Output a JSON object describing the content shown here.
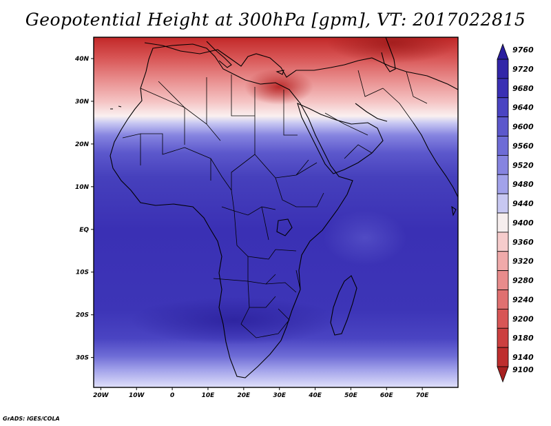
{
  "title": "Geopotential Height at 300hPa [gpm], VT: 2017022815",
  "credit": "GrADS: IGES/COLA",
  "map": {
    "lon_range": [
      -22,
      80
    ],
    "lat_range": [
      -37,
      45
    ],
    "x_ticks": [
      {
        "lon": -20,
        "label": "20W"
      },
      {
        "lon": -10,
        "label": "10W"
      },
      {
        "lon": 0,
        "label": "0"
      },
      {
        "lon": 10,
        "label": "10E"
      },
      {
        "lon": 20,
        "label": "20E"
      },
      {
        "lon": 30,
        "label": "30E"
      },
      {
        "lon": 40,
        "label": "40E"
      },
      {
        "lon": 50,
        "label": "50E"
      },
      {
        "lon": 60,
        "label": "60E"
      },
      {
        "lon": 70,
        "label": "70E"
      }
    ],
    "y_ticks": [
      {
        "lat": 40,
        "label": "40N"
      },
      {
        "lat": 30,
        "label": "30N"
      },
      {
        "lat": 20,
        "label": "20N"
      },
      {
        "lat": 10,
        "label": "10N"
      },
      {
        "lat": 0,
        "label": "EQ"
      },
      {
        "lat": -10,
        "label": "10S"
      },
      {
        "lat": -20,
        "label": "20S"
      },
      {
        "lat": -30,
        "label": "30S"
      }
    ]
  },
  "colorbar": {
    "levels": [
      {
        "value": "9760",
        "color": "#2a1e9e"
      },
      {
        "value": "9720",
        "color": "#3226a8"
      },
      {
        "value": "9680",
        "color": "#3a30b4"
      },
      {
        "value": "9640",
        "color": "#4a44c2"
      },
      {
        "value": "9600",
        "color": "#5c58cc"
      },
      {
        "value": "9560",
        "color": "#6e6cd6"
      },
      {
        "value": "9520",
        "color": "#8684e0"
      },
      {
        "value": "9480",
        "color": "#a2a2ea"
      },
      {
        "value": "9440",
        "color": "#c8c8f2"
      },
      {
        "value": "9400",
        "color": "#f6eeee"
      },
      {
        "value": "9360",
        "color": "#f6cccc"
      },
      {
        "value": "9320",
        "color": "#f0aaaa"
      },
      {
        "value": "9280",
        "color": "#e88c8c"
      },
      {
        "value": "9240",
        "color": "#e07070"
      },
      {
        "value": "9200",
        "color": "#d85656"
      },
      {
        "value": "9180",
        "color": "#cc4040"
      },
      {
        "value": "9140",
        "color": "#be2e2e"
      },
      {
        "value": "9100",
        "color": "#a82020"
      }
    ]
  }
}
